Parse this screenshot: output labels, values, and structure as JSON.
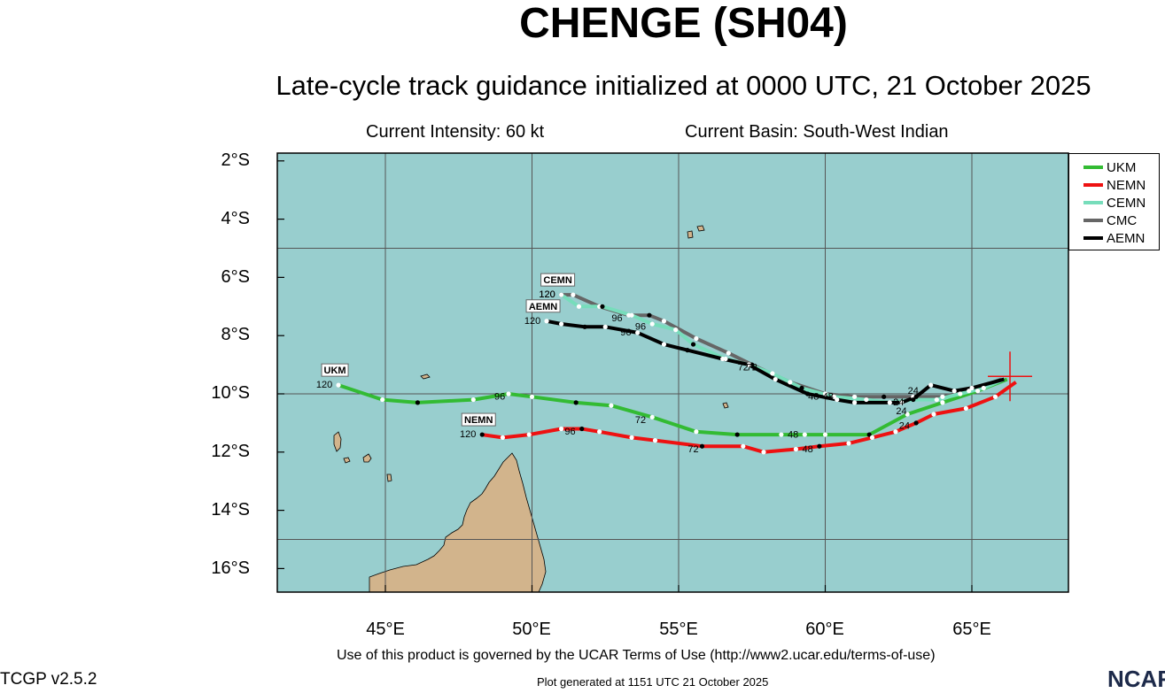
{
  "header": {
    "title": "CHENGE (SH04)",
    "subtitle": "Late-cycle track guidance initialized at 0000 UTC, 21 October 2025",
    "intensity": "Current Intensity: 60 kt",
    "basin": "Current Basin: South-West Indian"
  },
  "axes": {
    "lat_labels": [
      "2°S",
      "4°S",
      "6°S",
      "8°S",
      "10°S",
      "12°S",
      "14°S",
      "16°S"
    ],
    "lon_labels": [
      "45°E",
      "50°E",
      "55°E",
      "60°E",
      "65°E"
    ]
  },
  "colors": {
    "ocean": "#98cece",
    "land": "#d2b48c",
    "UKM": "#33bb33",
    "NEMN": "#ee1111",
    "CEMN": "#77ddbb",
    "CMC": "#666666",
    "AEMN": "#000000",
    "storm_marker": "#ee1111"
  },
  "legend": [
    "UKM",
    "NEMN",
    "CEMN",
    "CMC",
    "AEMN"
  ],
  "storm_position": {
    "lon": 66.3,
    "lat": -9.4
  },
  "tracks": [
    {
      "name": "UKM",
      "label": "UKM",
      "end_hour": "120",
      "points": [
        [
          66.2,
          -9.5
        ],
        [
          65.2,
          -9.9
        ],
        [
          64.0,
          -10.3
        ],
        [
          62.8,
          -10.7
        ],
        [
          61.5,
          -11.4
        ],
        [
          60.0,
          -11.4
        ],
        [
          59.3,
          -11.4
        ],
        [
          58.5,
          -11.4
        ],
        [
          57.0,
          -11.4
        ],
        [
          55.6,
          -11.3
        ],
        [
          54.1,
          -10.8
        ],
        [
          52.7,
          -10.4
        ],
        [
          51.5,
          -10.3
        ],
        [
          50.0,
          -10.1
        ],
        [
          49.2,
          -10.0
        ],
        [
          48.0,
          -10.2
        ],
        [
          46.1,
          -10.3
        ],
        [
          44.9,
          -10.2
        ],
        [
          43.4,
          -9.7
        ]
      ],
      "hour_labels": [
        {
          "text": "24",
          "lon": 62.6,
          "lat": -10.7
        },
        {
          "text": "48",
          "lon": 58.9,
          "lat": -11.5
        },
        {
          "text": "72",
          "lon": 53.7,
          "lat": -11.0
        },
        {
          "text": "96",
          "lon": 48.9,
          "lat": -10.2
        }
      ]
    },
    {
      "name": "NEMN",
      "label": "NEMN",
      "end_hour": "120",
      "points": [
        [
          66.5,
          -9.6
        ],
        [
          65.8,
          -10.1
        ],
        [
          64.8,
          -10.5
        ],
        [
          63.7,
          -10.7
        ],
        [
          63.1,
          -11.0
        ],
        [
          62.4,
          -11.3
        ],
        [
          61.6,
          -11.5
        ],
        [
          60.8,
          -11.7
        ],
        [
          59.8,
          -11.8
        ],
        [
          59.0,
          -11.9
        ],
        [
          57.9,
          -12.0
        ],
        [
          57.2,
          -11.8
        ],
        [
          55.8,
          -11.8
        ],
        [
          54.2,
          -11.6
        ],
        [
          53.4,
          -11.5
        ],
        [
          52.3,
          -11.3
        ],
        [
          51.7,
          -11.2
        ],
        [
          51.0,
          -11.2
        ],
        [
          49.9,
          -11.4
        ],
        [
          49.0,
          -11.5
        ],
        [
          48.3,
          -11.4
        ]
      ],
      "hour_labels": [
        {
          "text": "24",
          "lon": 62.7,
          "lat": -11.2
        },
        {
          "text": "48",
          "lon": 59.4,
          "lat": -12.0
        },
        {
          "text": "72",
          "lon": 55.5,
          "lat": -12.0
        },
        {
          "text": "96",
          "lon": 51.3,
          "lat": -11.4
        }
      ]
    },
    {
      "name": "CEMN",
      "label": "CEMN",
      "end_hour": "120",
      "points": [
        [
          66.1,
          -9.5
        ],
        [
          65.4,
          -9.8
        ],
        [
          64.6,
          -10.0
        ],
        [
          63.8,
          -10.2
        ],
        [
          63.0,
          -10.2
        ],
        [
          62.2,
          -10.3
        ],
        [
          61.4,
          -10.2
        ],
        [
          60.3,
          -10.1
        ],
        [
          59.2,
          -9.8
        ],
        [
          58.2,
          -9.3
        ],
        [
          57.4,
          -9.0
        ],
        [
          56.6,
          -8.8
        ],
        [
          55.5,
          -8.3
        ],
        [
          54.9,
          -7.8
        ],
        [
          54.1,
          -7.6
        ],
        [
          53.4,
          -7.3
        ],
        [
          52.4,
          -7.0
        ],
        [
          51.6,
          -7.0
        ],
        [
          51.0,
          -6.6
        ]
      ],
      "hour_labels": [
        {
          "text": "24",
          "lon": 62.5,
          "lat": -10.4
        },
        {
          "text": "48",
          "lon": 59.6,
          "lat": -10.2
        },
        {
          "text": "72",
          "lon": 57.5,
          "lat": -9.2
        },
        {
          "text": "96",
          "lon": 53.7,
          "lat": -7.8
        }
      ]
    },
    {
      "name": "CMC",
      "label": "CMC",
      "end_hour": "120",
      "points": [
        [
          66.0,
          -9.5
        ],
        [
          64.9,
          -9.9
        ],
        [
          64.0,
          -10.1
        ],
        [
          63.0,
          -10.1
        ],
        [
          62.0,
          -10.1
        ],
        [
          61.0,
          -10.1
        ],
        [
          60.0,
          -10.0
        ],
        [
          58.8,
          -9.6
        ],
        [
          57.5,
          -9.0
        ],
        [
          56.7,
          -8.6
        ],
        [
          55.6,
          -8.1
        ],
        [
          54.5,
          -7.5
        ],
        [
          54.0,
          -7.3
        ],
        [
          53.3,
          -7.3
        ],
        [
          52.3,
          -7.0
        ],
        [
          51.4,
          -6.6
        ],
        [
          51.0,
          -6.6
        ]
      ],
      "hour_labels": [
        {
          "text": "48",
          "lon": 60.1,
          "lat": -10.2
        },
        {
          "text": "72",
          "lon": 57.2,
          "lat": -9.2
        },
        {
          "text": "96",
          "lon": 52.9,
          "lat": -7.5
        }
      ]
    },
    {
      "name": "AEMN",
      "label": "AEMN",
      "end_hour": "120",
      "points": [
        [
          66.1,
          -9.5
        ],
        [
          65.0,
          -9.8
        ],
        [
          64.4,
          -9.9
        ],
        [
          63.6,
          -9.7
        ],
        [
          63.1,
          -10.1
        ],
        [
          62.6,
          -10.3
        ],
        [
          61.0,
          -10.3
        ],
        [
          60.4,
          -10.2
        ],
        [
          59.4,
          -10.0
        ],
        [
          58.3,
          -9.5
        ],
        [
          57.4,
          -9.0
        ],
        [
          56.5,
          -8.8
        ],
        [
          55.3,
          -8.5
        ],
        [
          54.5,
          -8.3
        ],
        [
          53.6,
          -7.9
        ],
        [
          52.5,
          -7.7
        ],
        [
          51.8,
          -7.7
        ],
        [
          51.0,
          -7.6
        ],
        [
          50.5,
          -7.5
        ]
      ],
      "hour_labels": [
        {
          "text": "24",
          "lon": 63.0,
          "lat": -10.0
        },
        {
          "text": "96",
          "lon": 53.2,
          "lat": -8.0
        }
      ]
    }
  ],
  "footer": {
    "terms": "Use of this product is governed by the UCAR Terms of Use (http://www2.ucar.edu/terms-of-use)",
    "version": "TCGP v2.5.2",
    "generated": "Plot generated at 1151 UTC   21 October 2025",
    "logo": "NCAR"
  }
}
